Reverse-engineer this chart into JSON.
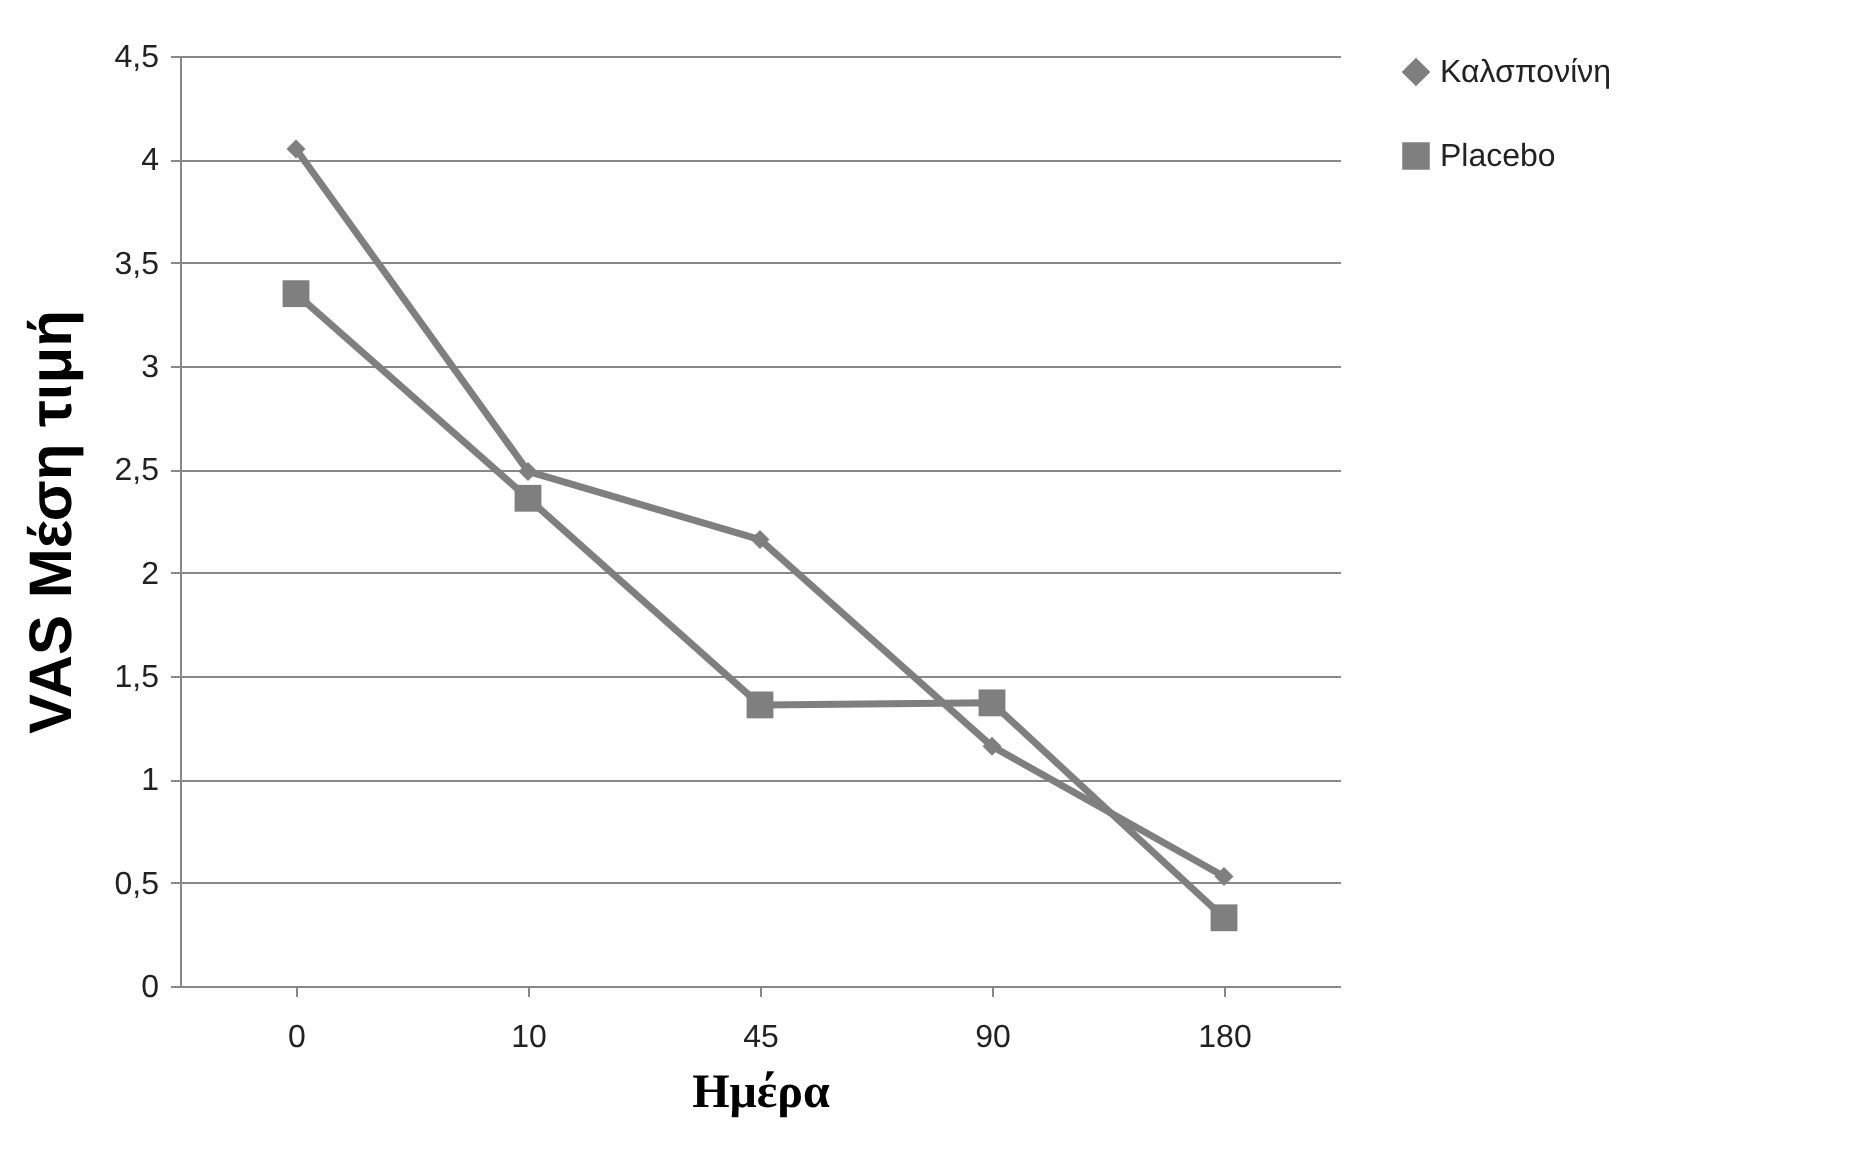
{
  "chart_data": {
    "type": "line",
    "xlabel": "Ημέρα",
    "ylabel": "VAS Μέση τιμή",
    "categories": [
      "0",
      "10",
      "45",
      "90",
      "180"
    ],
    "series": [
      {
        "name": "Καλσπονίνη",
        "color": "#7f7f7f",
        "marker": "diamond",
        "values": [
          4.05,
          2.49,
          2.16,
          1.16,
          0.53
        ]
      },
      {
        "name": "Placebo",
        "color": "#7f7f7f",
        "marker": "square",
        "values": [
          3.35,
          2.36,
          1.36,
          1.37,
          0.33
        ]
      }
    ],
    "ylim": [
      0,
      4.5
    ],
    "yticks": [
      0,
      {
        "value": 0.5,
        "label": "0,5"
      },
      1,
      {
        "value": 1.5,
        "label": "1,5"
      },
      2,
      {
        "value": 2.5,
        "label": "2,5"
      },
      3,
      {
        "value": 3.5,
        "label": "3,5"
      },
      4,
      {
        "value": 4.5,
        "label": "4,5"
      }
    ],
    "grid": "y",
    "legend": "right",
    "line_style": "solid"
  }
}
